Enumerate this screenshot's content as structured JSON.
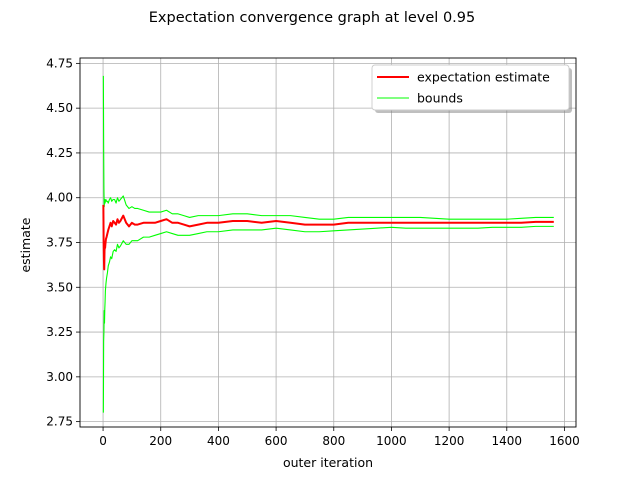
{
  "chart_data": {
    "type": "line",
    "title": "Expectation convergence graph at level 0.95",
    "xlabel": "outer iteration",
    "ylabel": "estimate",
    "xlim": [
      -80,
      1640
    ],
    "ylim": [
      2.72,
      4.78
    ],
    "xticks": [
      0,
      200,
      400,
      600,
      800,
      1000,
      1200,
      1400,
      1600
    ],
    "xtick_labels": [
      "0",
      "200",
      "400",
      "600",
      "800",
      "1000",
      "1200",
      "1400",
      "1600"
    ],
    "yticks": [
      2.75,
      3.0,
      3.25,
      3.5,
      3.75,
      4.0,
      4.25,
      4.5,
      4.75
    ],
    "ytick_labels": [
      "2.75",
      "3.00",
      "3.25",
      "3.50",
      "3.75",
      "4.00",
      "4.25",
      "4.50",
      "4.75"
    ],
    "grid": true,
    "legend_position": "top-right",
    "series": [
      {
        "name": "expectation estimate",
        "role": "estimate",
        "color": "#ff0000",
        "x": [
          1,
          2,
          3,
          4,
          5,
          6,
          7,
          8,
          10,
          12,
          15,
          18,
          22,
          26,
          30,
          35,
          40,
          45,
          50,
          55,
          60,
          70,
          80,
          90,
          100,
          110,
          120,
          140,
          160,
          180,
          200,
          220,
          240,
          260,
          280,
          300,
          330,
          360,
          400,
          450,
          500,
          550,
          600,
          650,
          700,
          750,
          800,
          850,
          900,
          950,
          1000,
          1050,
          1100,
          1150,
          1200,
          1250,
          1300,
          1350,
          1400,
          1450,
          1500,
          1563
        ],
        "y": [
          3.96,
          3.75,
          3.65,
          3.6,
          3.7,
          3.74,
          3.72,
          3.74,
          3.77,
          3.78,
          3.8,
          3.82,
          3.84,
          3.86,
          3.84,
          3.87,
          3.86,
          3.85,
          3.88,
          3.86,
          3.87,
          3.9,
          3.86,
          3.84,
          3.86,
          3.85,
          3.85,
          3.86,
          3.86,
          3.86,
          3.87,
          3.88,
          3.86,
          3.86,
          3.85,
          3.84,
          3.85,
          3.86,
          3.86,
          3.87,
          3.87,
          3.86,
          3.87,
          3.86,
          3.85,
          3.85,
          3.85,
          3.86,
          3.86,
          3.86,
          3.86,
          3.86,
          3.86,
          3.86,
          3.86,
          3.86,
          3.86,
          3.86,
          3.86,
          3.86,
          3.865,
          3.865
        ]
      },
      {
        "name": "bounds",
        "role": "upper",
        "color": "#00ff00",
        "x": [
          1,
          2,
          3,
          4,
          5,
          6,
          7,
          8,
          10,
          12,
          15,
          18,
          22,
          26,
          30,
          35,
          40,
          45,
          50,
          55,
          60,
          70,
          80,
          90,
          100,
          110,
          120,
          140,
          160,
          180,
          200,
          220,
          240,
          260,
          280,
          300,
          330,
          360,
          400,
          450,
          500,
          550,
          600,
          650,
          700,
          750,
          800,
          850,
          900,
          950,
          1000,
          1050,
          1100,
          1150,
          1200,
          1250,
          1300,
          1350,
          1400,
          1450,
          1500,
          1563
        ],
        "y": [
          4.68,
          4.3,
          4.05,
          3.95,
          3.98,
          3.99,
          3.97,
          3.98,
          3.99,
          3.98,
          3.98,
          3.97,
          3.99,
          4.0,
          3.98,
          3.99,
          3.99,
          3.97,
          4.0,
          3.98,
          3.99,
          4.01,
          3.96,
          3.94,
          3.95,
          3.94,
          3.94,
          3.93,
          3.92,
          3.92,
          3.92,
          3.93,
          3.91,
          3.91,
          3.9,
          3.89,
          3.9,
          3.9,
          3.9,
          3.91,
          3.91,
          3.9,
          3.9,
          3.9,
          3.89,
          3.88,
          3.88,
          3.89,
          3.89,
          3.89,
          3.89,
          3.89,
          3.89,
          3.885,
          3.88,
          3.88,
          3.88,
          3.88,
          3.88,
          3.885,
          3.89,
          3.89
        ]
      },
      {
        "name": "bounds",
        "role": "lower",
        "color": "#00ff00",
        "x": [
          1,
          2,
          3,
          4,
          5,
          6,
          7,
          8,
          10,
          12,
          15,
          18,
          22,
          26,
          30,
          35,
          40,
          45,
          50,
          55,
          60,
          70,
          80,
          90,
          100,
          110,
          120,
          140,
          160,
          180,
          200,
          220,
          240,
          260,
          280,
          300,
          330,
          360,
          400,
          450,
          500,
          550,
          600,
          650,
          700,
          750,
          800,
          850,
          900,
          950,
          1000,
          1050,
          1100,
          1150,
          1200,
          1250,
          1300,
          1350,
          1400,
          1450,
          1500,
          1563
        ],
        "y": [
          2.8,
          3.2,
          3.25,
          3.37,
          3.3,
          3.38,
          3.42,
          3.48,
          3.52,
          3.55,
          3.58,
          3.62,
          3.64,
          3.67,
          3.66,
          3.7,
          3.71,
          3.7,
          3.74,
          3.72,
          3.73,
          3.76,
          3.74,
          3.74,
          3.76,
          3.76,
          3.76,
          3.78,
          3.78,
          3.79,
          3.8,
          3.81,
          3.8,
          3.79,
          3.79,
          3.79,
          3.8,
          3.81,
          3.81,
          3.82,
          3.82,
          3.82,
          3.83,
          3.82,
          3.81,
          3.81,
          3.815,
          3.82,
          3.825,
          3.83,
          3.835,
          3.83,
          3.83,
          3.83,
          3.83,
          3.83,
          3.83,
          3.835,
          3.835,
          3.835,
          3.84,
          3.84
        ]
      }
    ],
    "legend": [
      {
        "label": "expectation estimate",
        "color": "#ff0000"
      },
      {
        "label": "bounds",
        "color": "#00ff00"
      }
    ]
  }
}
